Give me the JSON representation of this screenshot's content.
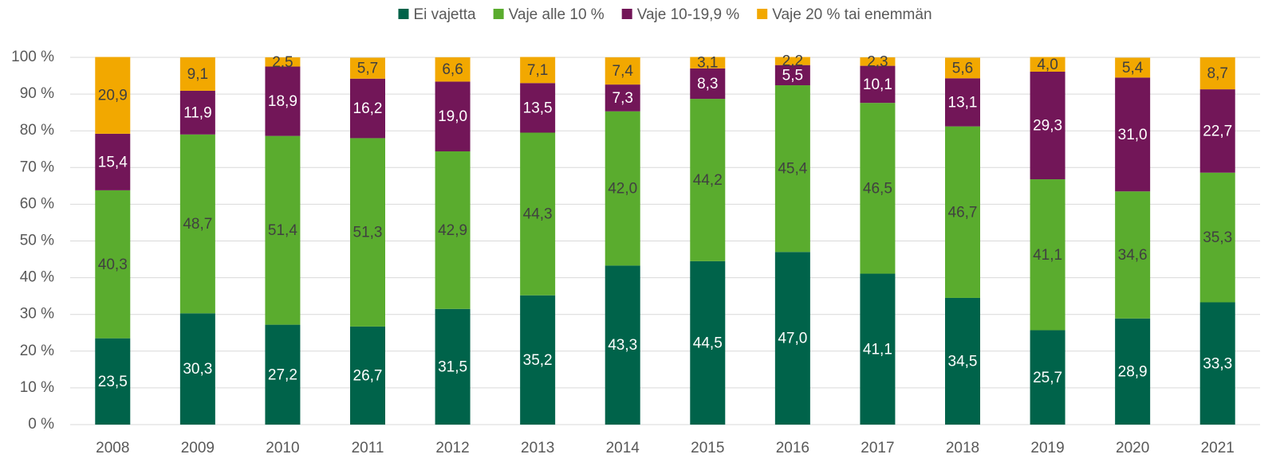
{
  "chart_data": {
    "type": "stacked_bar",
    "categories": [
      "2008",
      "2009",
      "2010",
      "2011",
      "2012",
      "2013",
      "2014",
      "2015",
      "2016",
      "2017",
      "2018",
      "2019",
      "2020",
      "2021"
    ],
    "series": [
      {
        "name": "Ei vajetta",
        "color": "#00634a",
        "values": [
          23.5,
          30.3,
          27.2,
          26.7,
          31.5,
          35.2,
          43.3,
          44.5,
          47.0,
          41.1,
          34.5,
          25.7,
          28.9,
          33.3
        ],
        "value_labels": [
          "23,5",
          "30,3",
          "27,2",
          "26,7",
          "31,5",
          "35,2",
          "43,3",
          "44,5",
          "47,0",
          "41,1",
          "34,5",
          "25,7",
          "28,9",
          "33,3"
        ]
      },
      {
        "name": "Vaje alle 10 %",
        "color": "#5aac2e",
        "values": [
          40.3,
          48.7,
          51.4,
          51.3,
          42.9,
          44.3,
          42.0,
          44.2,
          45.4,
          46.5,
          46.7,
          41.1,
          34.6,
          35.3
        ],
        "value_labels": [
          "40,3",
          "48,7",
          "51,4",
          "51,3",
          "42,9",
          "44,3",
          "42,0",
          "44,2",
          "45,4",
          "46,5",
          "46,7",
          "41,1",
          "34,6",
          "35,3"
        ]
      },
      {
        "name": "Vaje 10-19,9 %",
        "color": "#721658",
        "values": [
          15.4,
          11.9,
          18.9,
          16.2,
          19.0,
          13.5,
          7.3,
          8.3,
          5.5,
          10.1,
          13.1,
          29.3,
          31.0,
          22.7
        ],
        "value_labels": [
          "15,4",
          "11,9",
          "18,9",
          "16,2",
          "19,0",
          "13,5",
          "7,3",
          "8,3",
          "5,5",
          "10,1",
          "13,1",
          "29,3",
          "31,0",
          "22,7"
        ]
      },
      {
        "name": "Vaje 20 % tai enemmän",
        "color": "#f2a800",
        "values": [
          20.9,
          9.1,
          2.5,
          5.7,
          6.6,
          7.1,
          7.4,
          3.1,
          2.2,
          2.3,
          5.6,
          4.0,
          5.4,
          8.7
        ],
        "value_labels": [
          "20,9",
          "9,1",
          "2,5",
          "5,7",
          "6,6",
          "7,1",
          "7,4",
          "3,1",
          "2,2",
          "2,3",
          "5,6",
          "4,0",
          "5,4",
          "8,7"
        ]
      }
    ],
    "ylim": [
      0,
      100
    ],
    "yticks": [
      {
        "value": 0,
        "label": "0 %"
      },
      {
        "value": 10,
        "label": "10 %"
      },
      {
        "value": 20,
        "label": "20 %"
      },
      {
        "value": 30,
        "label": "30 %"
      },
      {
        "value": 40,
        "label": "40 %"
      },
      {
        "value": 50,
        "label": "50 %"
      },
      {
        "value": 60,
        "label": "60 %"
      },
      {
        "value": 70,
        "label": "70 %"
      },
      {
        "value": 80,
        "label": "80 %"
      },
      {
        "value": 90,
        "label": "90 %"
      },
      {
        "value": 100,
        "label": "100 %"
      }
    ],
    "grid": true,
    "legend": "top"
  }
}
